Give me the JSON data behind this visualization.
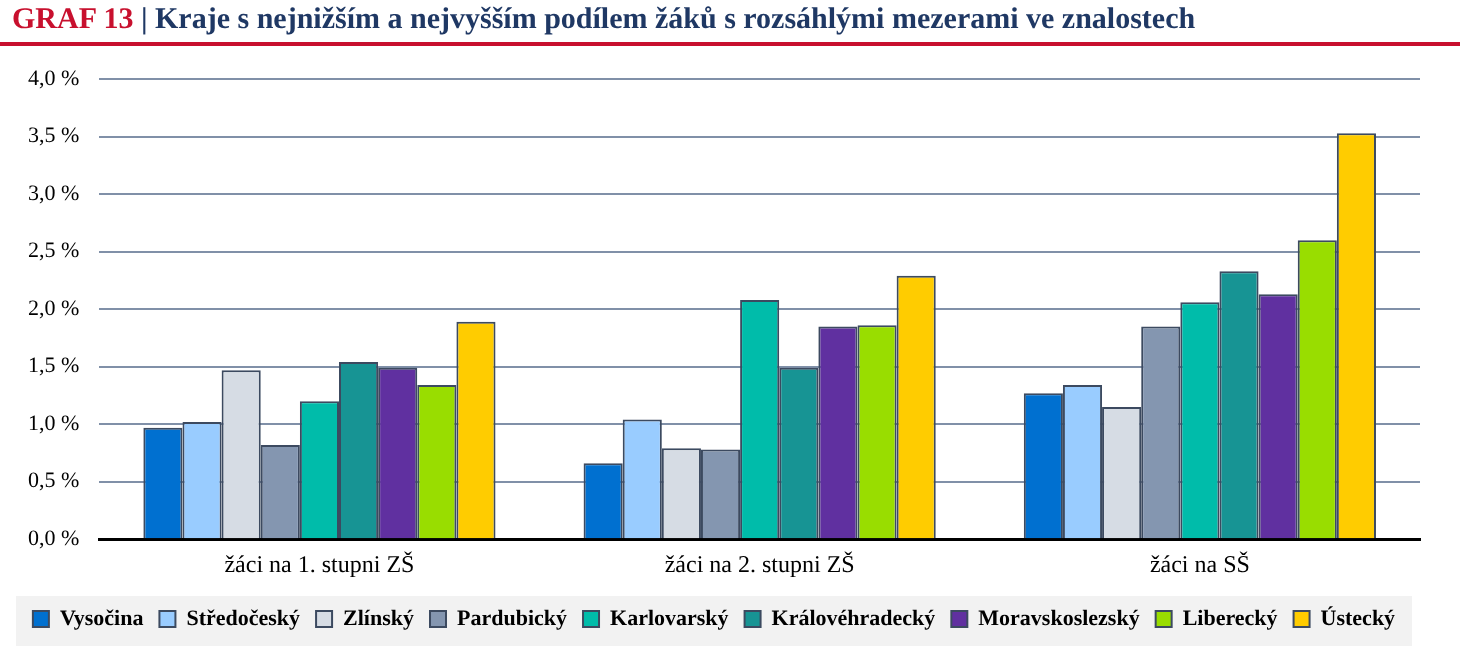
{
  "chart_data": {
    "type": "bar",
    "title": "GRAF 13 | Kraje s nejnižším a nejvyšším podílem žáků s rozsáhlými mezerami ve znalostech",
    "categories": [
      "žáci na 1. stupni ZŠ",
      "žáci na 2. stupni ZŠ",
      "žáci na SŠ"
    ],
    "series": [
      {
        "name": "Vysočina",
        "color": "#0070d0",
        "values": [
          0.97,
          0.66,
          1.27
        ]
      },
      {
        "name": "Středočeský",
        "color": "#99ccff",
        "values": [
          1.02,
          1.04,
          1.34
        ]
      },
      {
        "name": "Zlínský",
        "color": "#d6dce4",
        "values": [
          1.47,
          0.79,
          1.15
        ]
      },
      {
        "name": "Pardubický",
        "color": "#8496b0",
        "values": [
          0.82,
          0.78,
          1.85
        ]
      },
      {
        "name": "Karlovarský",
        "color": "#00bcaa",
        "values": [
          1.2,
          2.08,
          2.06
        ]
      },
      {
        "name": "Královéhradecký",
        "color": "#179494",
        "values": [
          1.54,
          1.49,
          2.33
        ]
      },
      {
        "name": "Moravskoslezský",
        "color": "#6030a0",
        "values": [
          1.49,
          1.85,
          2.13
        ]
      },
      {
        "name": "Liberecký",
        "color": "#99dd00",
        "values": [
          1.34,
          1.86,
          2.6
        ]
      },
      {
        "name": "Ústecký",
        "color": "#ffcc00",
        "values": [
          1.89,
          2.29,
          3.53
        ]
      }
    ],
    "ylim": [
      0,
      4
    ],
    "yticks": [
      {
        "value": 0,
        "label": "0,0 %"
      },
      {
        "value": 0.5,
        "label": "0,5 %"
      },
      {
        "value": 1,
        "label": "1,0 %"
      },
      {
        "value": 1.5,
        "label": "1,5 %"
      },
      {
        "value": 2,
        "label": "2,0 %"
      },
      {
        "value": 2.5,
        "label": "2,5 %"
      },
      {
        "value": 3,
        "label": "3,0 %"
      },
      {
        "value": 3.5,
        "label": "3,5 %"
      },
      {
        "value": 4,
        "label": "4,0 %"
      }
    ],
    "grid": "y",
    "legend": "bottom"
  }
}
